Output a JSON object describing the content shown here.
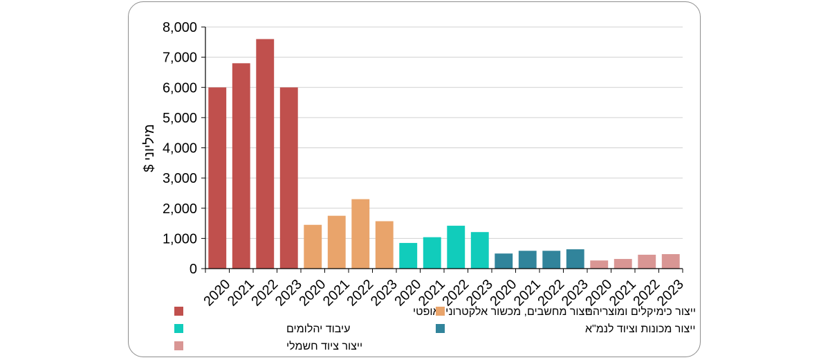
{
  "chart_data": {
    "type": "bar",
    "ylabel": "מיליוני $",
    "xlabel": "",
    "ylim": [
      0,
      8000
    ],
    "yticks": [
      0,
      1000,
      2000,
      3000,
      4000,
      5000,
      6000,
      7000,
      8000
    ],
    "ytick_labels": [
      "0",
      "1,000",
      "2,000",
      "3,000",
      "4,000",
      "5,000",
      "6,000",
      "7,000",
      "8,000"
    ],
    "categories": [
      "2020",
      "2021",
      "2022",
      "2023"
    ],
    "grid": true,
    "legend_position": "bottom",
    "series": [
      {
        "name": "ייצור מחשבים, מכשור אלקטרוני ואופטי",
        "color": "#C0504D",
        "values": [
          6000,
          6800,
          7600,
          6000
        ]
      },
      {
        "name": "ייצור כימיקלים ומוצריהם",
        "color": "#E9A46B",
        "values": [
          1450,
          1750,
          2300,
          1570
        ]
      },
      {
        "name": "עיבוד יהלומים",
        "color": "#11CCBB",
        "values": [
          850,
          1040,
          1420,
          1210
        ]
      },
      {
        "name": "ייצור מכונות וציוד לנמ\"א",
        "color": "#31849B",
        "values": [
          500,
          590,
          590,
          640
        ]
      },
      {
        "name": "ייצור ציוד חשמלי",
        "color": "#D99694",
        "values": [
          270,
          320,
          460,
          480
        ]
      }
    ]
  }
}
